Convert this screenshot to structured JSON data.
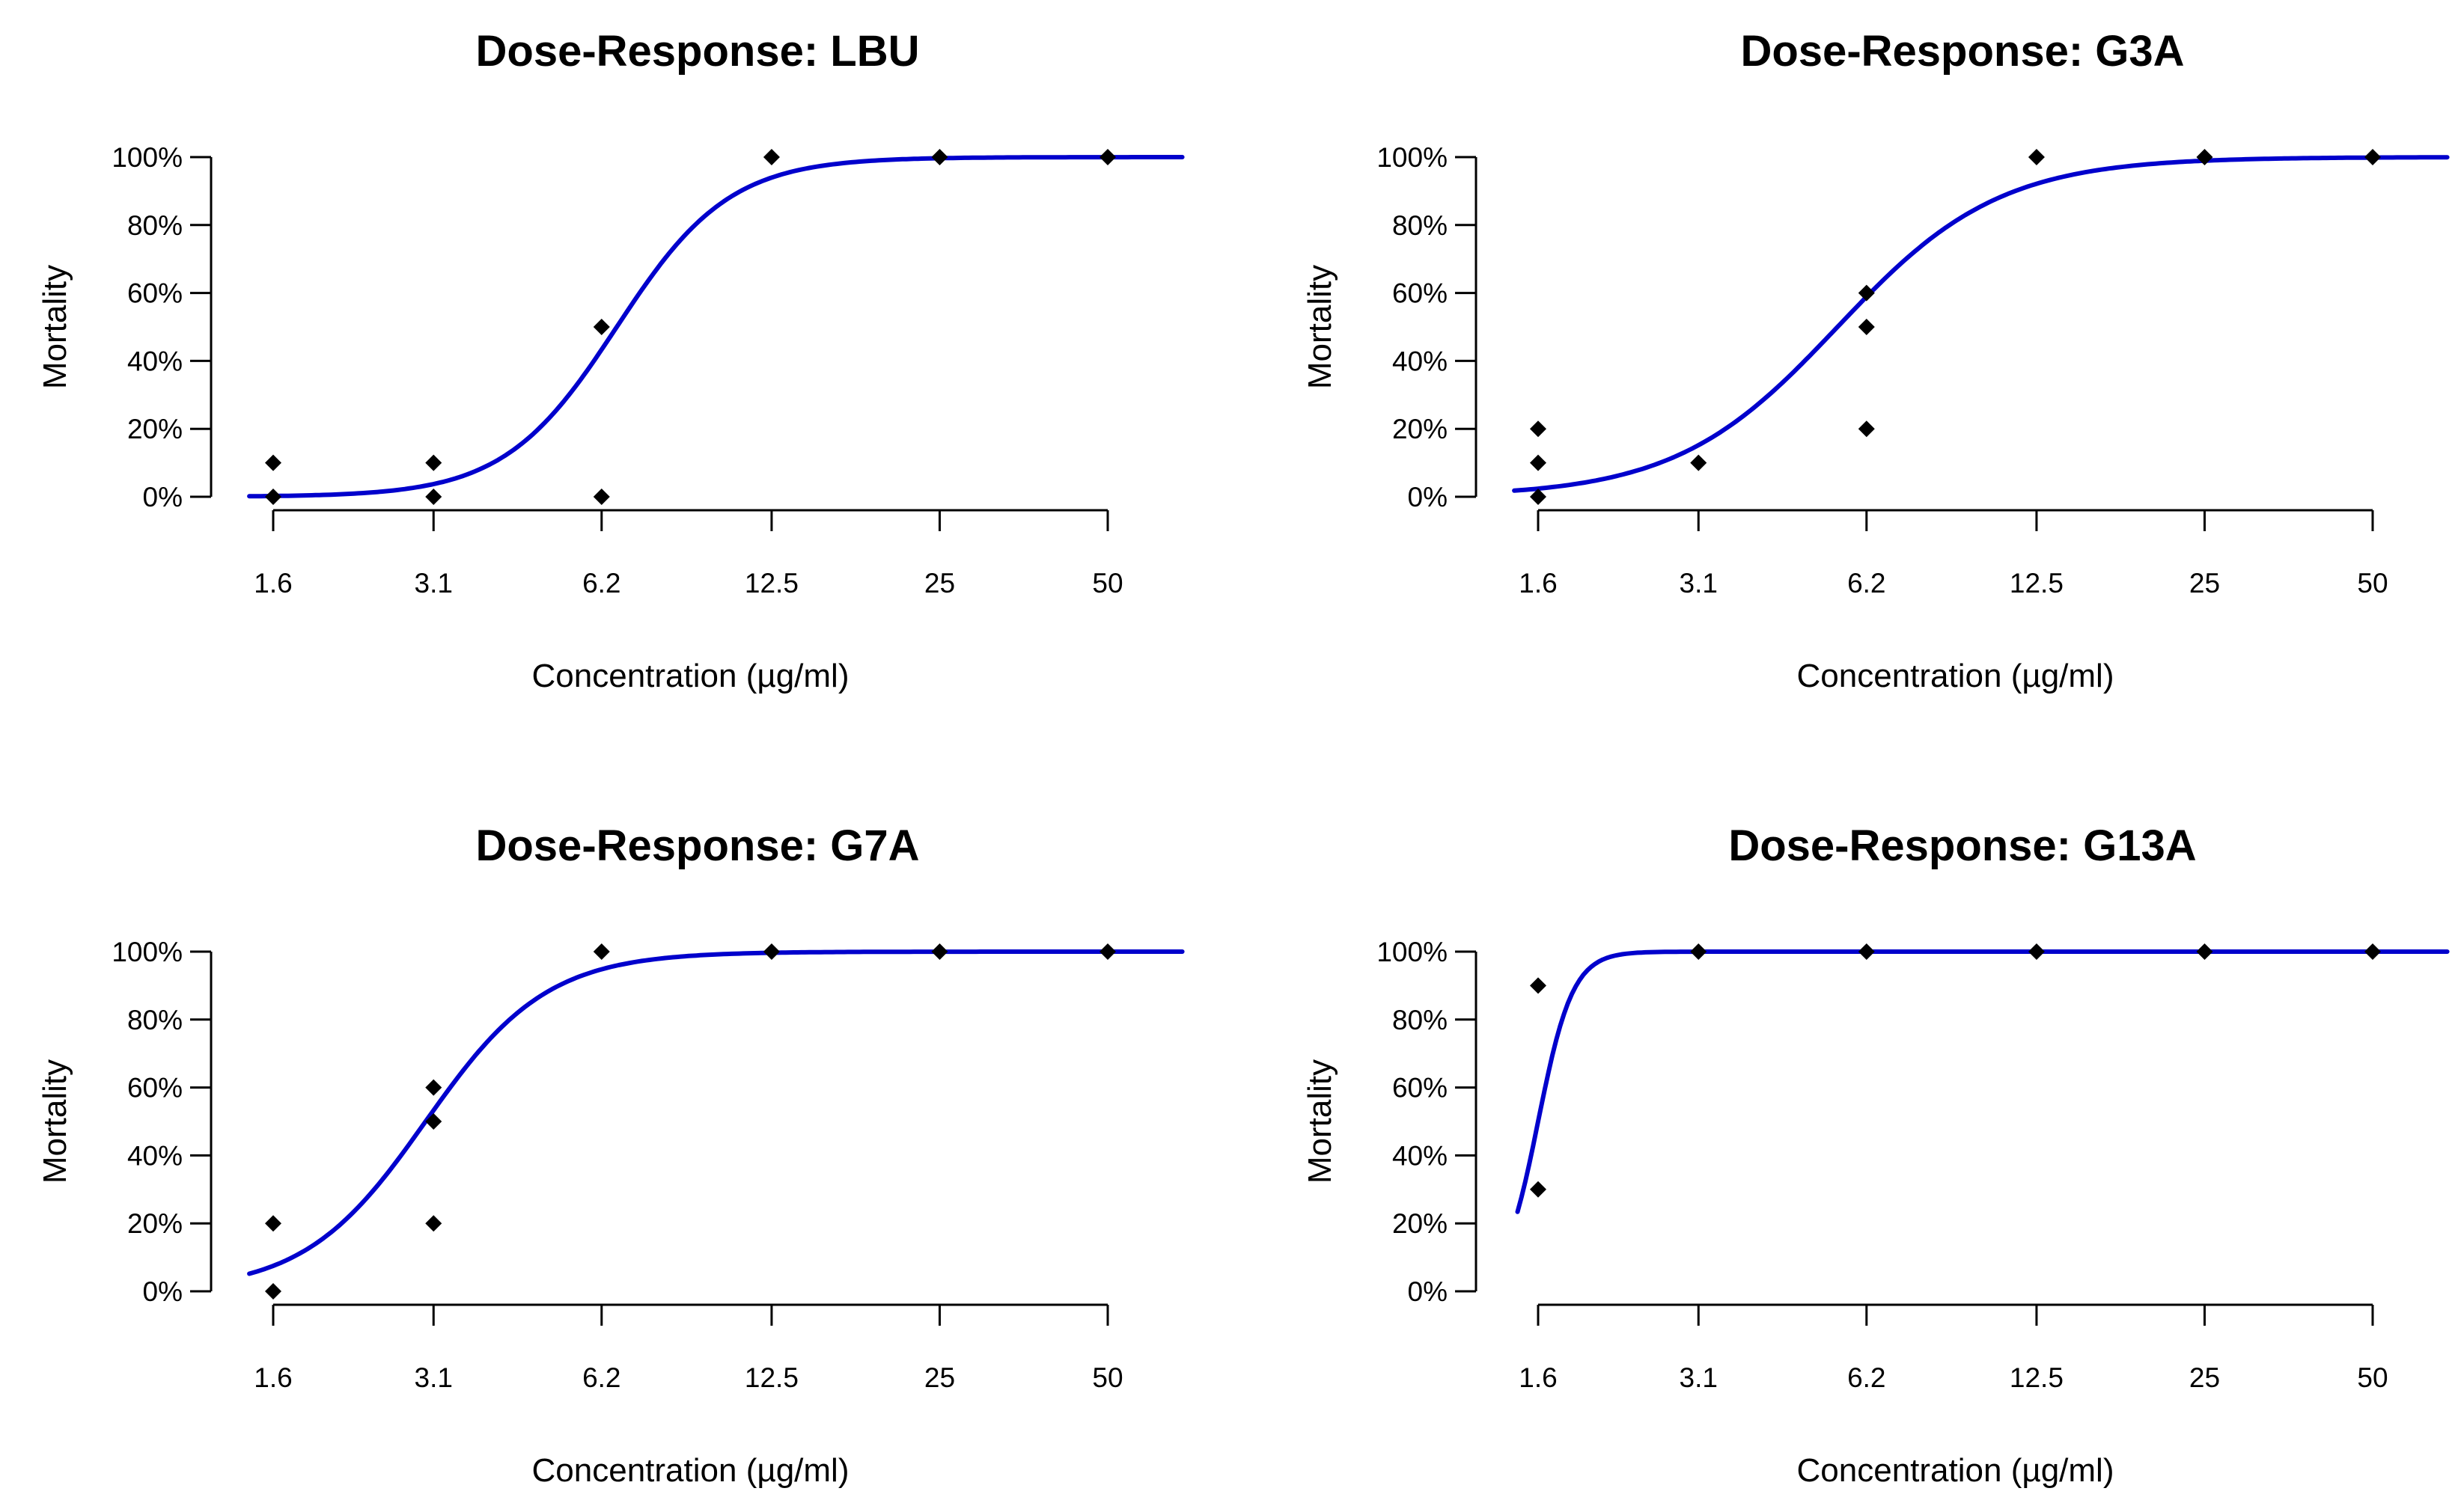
{
  "figure": {
    "curve_color": "#0000cc",
    "point_color": "#000000"
  },
  "chart_data": [
    {
      "type": "scatter",
      "title": "Dose-Response: LBU",
      "xlabel": "Concentration (µg/ml)",
      "ylabel": "Mortality",
      "x_scale": "log",
      "x_ticks": [
        1.6,
        3.1,
        6.2,
        12.5,
        25,
        50
      ],
      "x_tick_labels": [
        "1.6",
        "3.1",
        "6.2",
        "12.5",
        "25",
        "50"
      ],
      "y_ticks": [
        0,
        20,
        40,
        60,
        80,
        100
      ],
      "y_tick_labels": [
        "0%",
        "20%",
        "40%",
        "60%",
        "80%",
        "100%"
      ],
      "ylim": [
        0,
        100
      ],
      "points": [
        {
          "x": 1.6,
          "y": 10
        },
        {
          "x": 1.6,
          "y": 0
        },
        {
          "x": 3.1,
          "y": 10
        },
        {
          "x": 3.1,
          "y": 0
        },
        {
          "x": 6.2,
          "y": 50
        },
        {
          "x": 6.2,
          "y": 0
        },
        {
          "x": 12.5,
          "y": 100
        },
        {
          "x": 25,
          "y": 100
        },
        {
          "x": 50,
          "y": 100
        }
      ],
      "fit": {
        "model": "log-logistic",
        "ec50": 6.6,
        "slope": 4.3,
        "x_start": 1.45,
        "x_end": 68
      }
    },
    {
      "type": "scatter",
      "title": "Dose-Response: G3A",
      "xlabel": "Concentration (µg/ml)",
      "ylabel": "Mortality",
      "x_scale": "log",
      "x_ticks": [
        1.6,
        3.1,
        6.2,
        12.5,
        25,
        50
      ],
      "x_tick_labels": [
        "1.6",
        "3.1",
        "6.2",
        "12.5",
        "25",
        "50"
      ],
      "y_ticks": [
        0,
        20,
        40,
        60,
        80,
        100
      ],
      "y_tick_labels": [
        "0%",
        "20%",
        "40%",
        "60%",
        "80%",
        "100%"
      ],
      "ylim": [
        0,
        100
      ],
      "points": [
        {
          "x": 1.6,
          "y": 20
        },
        {
          "x": 1.6,
          "y": 10
        },
        {
          "x": 1.6,
          "y": 0
        },
        {
          "x": 3.1,
          "y": 10
        },
        {
          "x": 6.2,
          "y": 60
        },
        {
          "x": 6.2,
          "y": 50
        },
        {
          "x": 6.2,
          "y": 20
        },
        {
          "x": 12.5,
          "y": 100
        },
        {
          "x": 25,
          "y": 100
        },
        {
          "x": 50,
          "y": 100
        }
      ],
      "fit": {
        "model": "log-logistic",
        "ec50": 5.5,
        "slope": 3.0,
        "x_start": 1.45,
        "x_end": 68
      }
    },
    {
      "type": "scatter",
      "title": "Dose-Response: G7A",
      "xlabel": "Concentration (µg/ml)",
      "ylabel": "Mortality",
      "x_scale": "log",
      "x_ticks": [
        1.6,
        3.1,
        6.2,
        12.5,
        25,
        50
      ],
      "x_tick_labels": [
        "1.6",
        "3.1",
        "6.2",
        "12.5",
        "25",
        "50"
      ],
      "y_ticks": [
        0,
        20,
        40,
        60,
        80,
        100
      ],
      "y_tick_labels": [
        "0%",
        "20%",
        "40%",
        "60%",
        "80%",
        "100%"
      ],
      "ylim": [
        0,
        100
      ],
      "points": [
        {
          "x": 1.6,
          "y": 20
        },
        {
          "x": 1.6,
          "y": 0
        },
        {
          "x": 3.1,
          "y": 60
        },
        {
          "x": 3.1,
          "y": 50
        },
        {
          "x": 3.1,
          "y": 20
        },
        {
          "x": 6.2,
          "y": 100
        },
        {
          "x": 12.5,
          "y": 100
        },
        {
          "x": 25,
          "y": 100
        },
        {
          "x": 50,
          "y": 100
        }
      ],
      "fit": {
        "model": "log-logistic",
        "ec50": 3.0,
        "slope": 4.0,
        "x_start": 1.45,
        "x_end": 68
      }
    },
    {
      "type": "scatter",
      "title": "Dose-Response: G13A",
      "xlabel": "Concentration (µg/ml)",
      "ylabel": "Mortality",
      "x_scale": "log",
      "x_ticks": [
        1.6,
        3.1,
        6.2,
        12.5,
        25,
        50
      ],
      "x_tick_labels": [
        "1.6",
        "3.1",
        "6.2",
        "12.5",
        "25",
        "50"
      ],
      "y_ticks": [
        0,
        20,
        40,
        60,
        80,
        100
      ],
      "y_tick_labels": [
        "0%",
        "20%",
        "40%",
        "60%",
        "80%",
        "100%"
      ],
      "ylim": [
        0,
        100
      ],
      "points": [
        {
          "x": 1.6,
          "y": 90
        },
        {
          "x": 1.6,
          "y": 30
        },
        {
          "x": 3.1,
          "y": 100
        },
        {
          "x": 6.2,
          "y": 100
        },
        {
          "x": 12.5,
          "y": 100
        },
        {
          "x": 25,
          "y": 100
        },
        {
          "x": 50,
          "y": 100
        }
      ],
      "fit": {
        "model": "log-logistic",
        "ec50": 1.6,
        "slope": 14,
        "x_start": 1.47,
        "x_end": 68
      }
    }
  ]
}
